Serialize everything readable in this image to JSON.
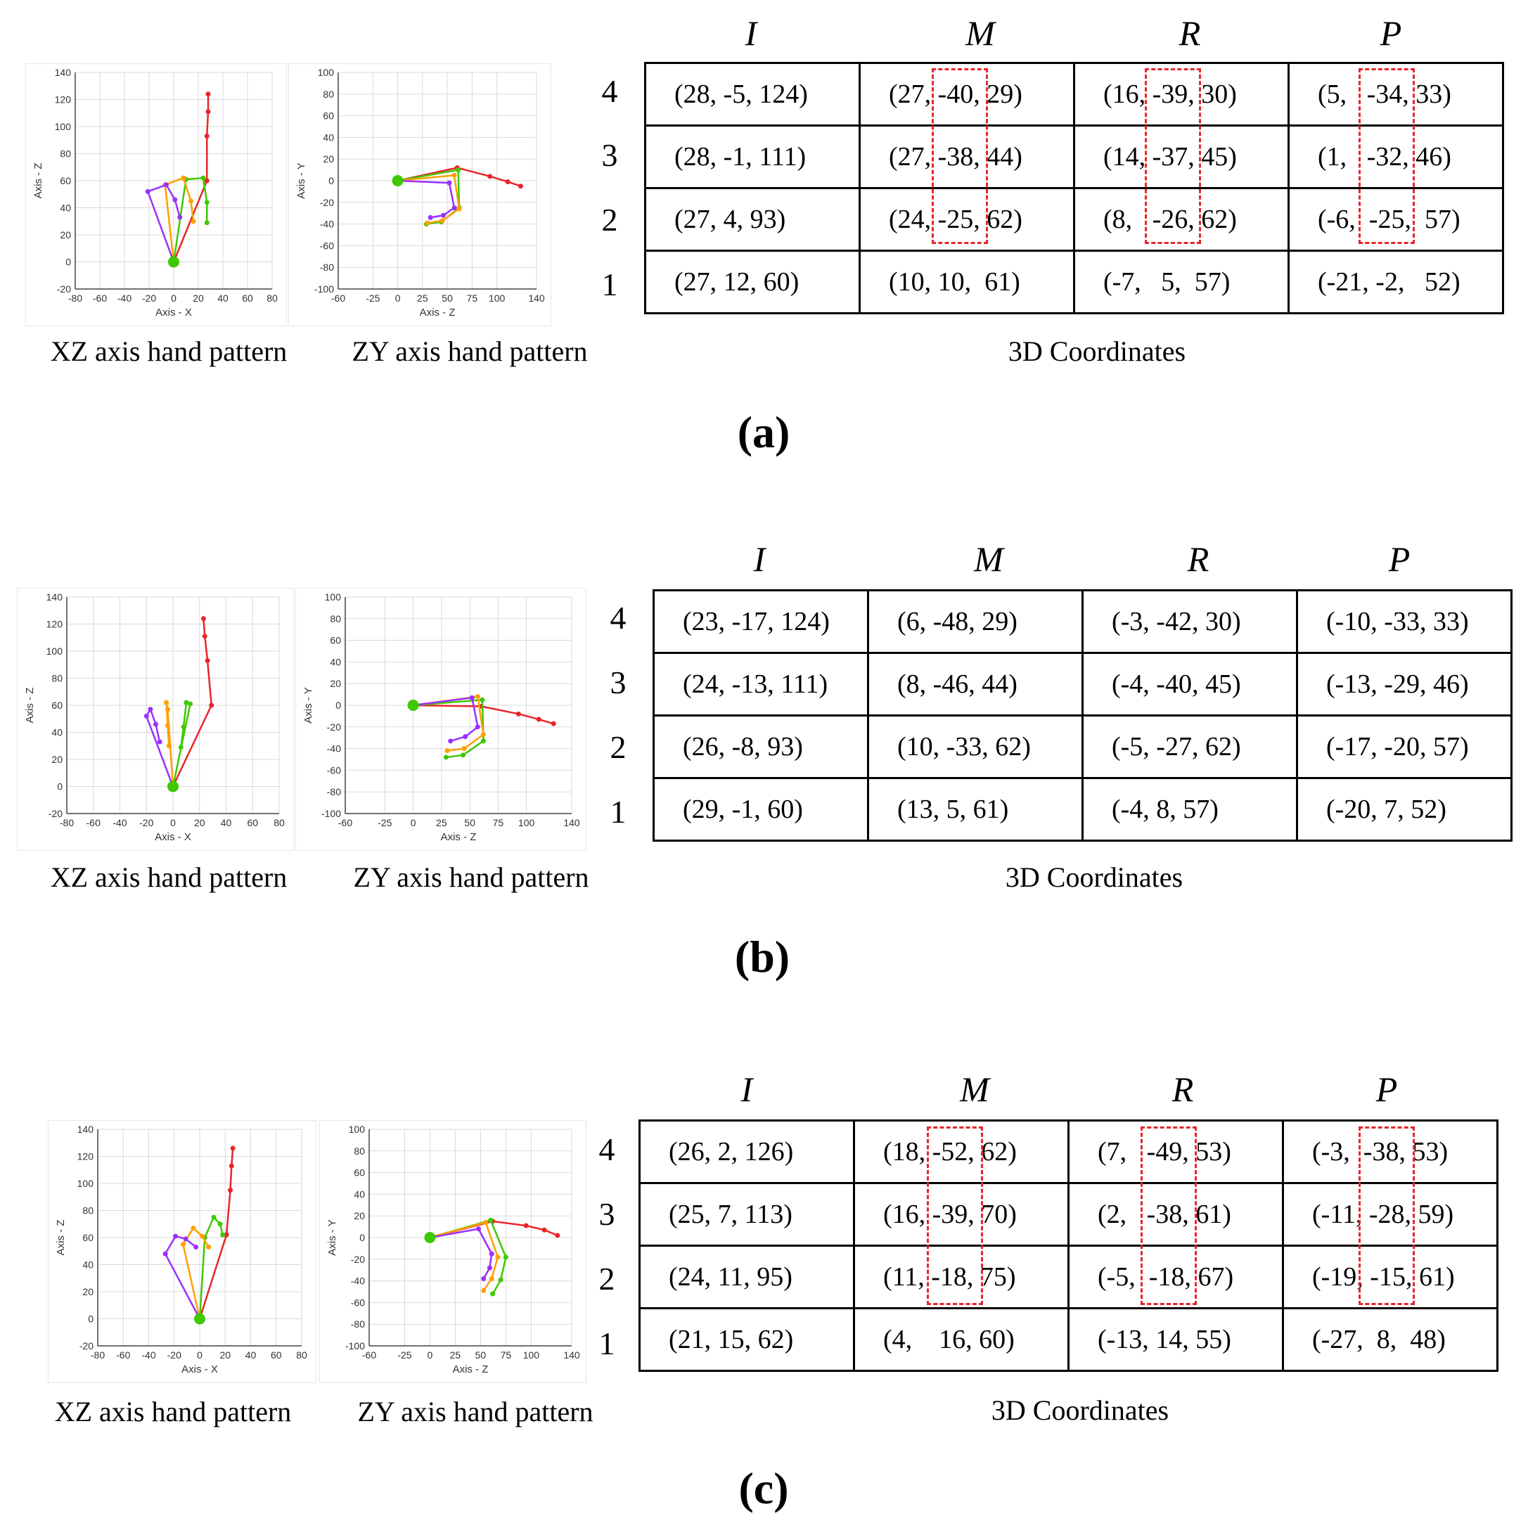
{
  "colors": {
    "index": "#e8252a",
    "middle": "#3ec900",
    "ring": "#ff9f00",
    "pinky": "#9b30ff",
    "thumb": "#1f78c8",
    "highlight": "#e8252a"
  },
  "chart_data": [
    {
      "label": "(a)",
      "type": "table",
      "xz_plot": {
        "caption": "XZ axis hand pattern",
        "xlabel": "Axis - X",
        "ylabel": "Axis - Z",
        "xticks": [
          "-80",
          "-60",
          "-40",
          "-20",
          "0",
          "20",
          "40",
          "60",
          "80"
        ],
        "yticks": [
          "140",
          "120",
          "100",
          "80",
          "60",
          "40",
          "20",
          "0",
          "-20"
        ]
      },
      "zy_plot": {
        "caption": "ZY axis hand pattern",
        "xlabel": "Axis - Z",
        "ylabel": "Axis - Y",
        "xticks": [
          "-60",
          "-25",
          "0",
          "25",
          "50",
          "75",
          "100",
          "140"
        ],
        "yticks": [
          "100",
          "80",
          "60",
          "40",
          "20",
          "0",
          "-20",
          "-40",
          "-60",
          "-80",
          "-100"
        ]
      },
      "table_caption": "3D Coordinates",
      "columns": [
        "I",
        "M",
        "R",
        "P"
      ],
      "row_labels": [
        "4",
        "3",
        "2",
        "1"
      ],
      "rows": [
        [
          "(28, -5, 124)",
          "(27, -40, 29)",
          "(16, -39, 30)",
          "(5,   -34, 33)"
        ],
        [
          "(28, -1, 111)",
          "(27, -38, 44)",
          "(14, -37, 45)",
          "(1,   -32, 46)"
        ],
        [
          "(27, 4, 93)",
          "(24, -25, 62)",
          "(8,   -26, 62)",
          "(-6,  -25,  57)"
        ],
        [
          "(27, 12, 60)",
          "(10, 10,  61)",
          "(-7,   5,  57)",
          "(-21, -2,   52)"
        ]
      ]
    },
    {
      "label": "(b)",
      "type": "table",
      "xz_plot": {
        "caption": "XZ axis hand pattern",
        "xlabel": "Axis - X",
        "ylabel": "Axis - Z",
        "xticks": [
          "-80",
          "-60",
          "-40",
          "-20",
          "0",
          "20",
          "40",
          "60",
          "80"
        ],
        "yticks": [
          "140",
          "120",
          "100",
          "80",
          "60",
          "40",
          "20",
          "0",
          "-20"
        ]
      },
      "zy_plot": {
        "caption": "ZY axis hand pattern",
        "xlabel": "Axis - Z",
        "ylabel": "Axis - Y",
        "xticks": [
          "-60",
          "-25",
          "0",
          "25",
          "50",
          "75",
          "100",
          "140"
        ],
        "yticks": [
          "100",
          "80",
          "60",
          "40",
          "20",
          "0",
          "-20",
          "-40",
          "-60",
          "-80",
          "-100"
        ]
      },
      "table_caption": "3D Coordinates",
      "columns": [
        "I",
        "M",
        "R",
        "P"
      ],
      "row_labels": [
        "4",
        "3",
        "2",
        "1"
      ],
      "rows": [
        [
          "(23, -17, 124)",
          "(6, -48, 29)",
          "(-3, -42, 30)",
          "(-10, -33, 33)"
        ],
        [
          "(24, -13, 111)",
          "(8, -46, 44)",
          "(-4, -40, 45)",
          "(-13, -29, 46)"
        ],
        [
          "(26, -8, 93)",
          "(10, -33, 62)",
          "(-5, -27, 62)",
          "(-17, -20, 57)"
        ],
        [
          "(29, -1, 60)",
          "(13, 5, 61)",
          "(-4, 8, 57)",
          "(-20, 7, 52)"
        ]
      ]
    },
    {
      "label": "(c)",
      "type": "table",
      "xz_plot": {
        "caption": "XZ axis hand pattern",
        "xlabel": "Axis - X",
        "ylabel": "Axis - Z",
        "xticks": [
          "-80",
          "-60",
          "-40",
          "-20",
          "0",
          "20",
          "40",
          "60",
          "80"
        ],
        "yticks": [
          "140",
          "120",
          "100",
          "80",
          "60",
          "40",
          "20",
          "0",
          "-20"
        ]
      },
      "zy_plot": {
        "caption": "ZY axis hand pattern",
        "xlabel": "Axis - Z",
        "ylabel": "Axis - Y",
        "xticks": [
          "-60",
          "-25",
          "0",
          "25",
          "50",
          "75",
          "100",
          "140"
        ],
        "yticks": [
          "100",
          "80",
          "60",
          "40",
          "20",
          "0",
          "-20",
          "-40",
          "-60",
          "-80",
          "-100"
        ]
      },
      "table_caption": "3D Coordinates",
      "columns": [
        "I",
        "M",
        "R",
        "P"
      ],
      "row_labels": [
        "4",
        "3",
        "2",
        "1"
      ],
      "rows": [
        [
          "(26, 2, 126)",
          "(18, -52, 62)",
          "(7,   -49, 53)",
          "(-3,  -38, 53)"
        ],
        [
          "(25, 7, 113)",
          "(16, -39, 70)",
          "(2,   -38, 61)",
          "(-11, -28, 59)"
        ],
        [
          "(24, 11, 95)",
          "(11, -18, 75)",
          "(-5,  -18, 67)",
          "(-19, -15, 61)"
        ],
        [
          "(21, 15, 62)",
          "(4,    16, 60)",
          "(-13, 14, 55)",
          "(-27,  8,  48)"
        ]
      ]
    }
  ]
}
